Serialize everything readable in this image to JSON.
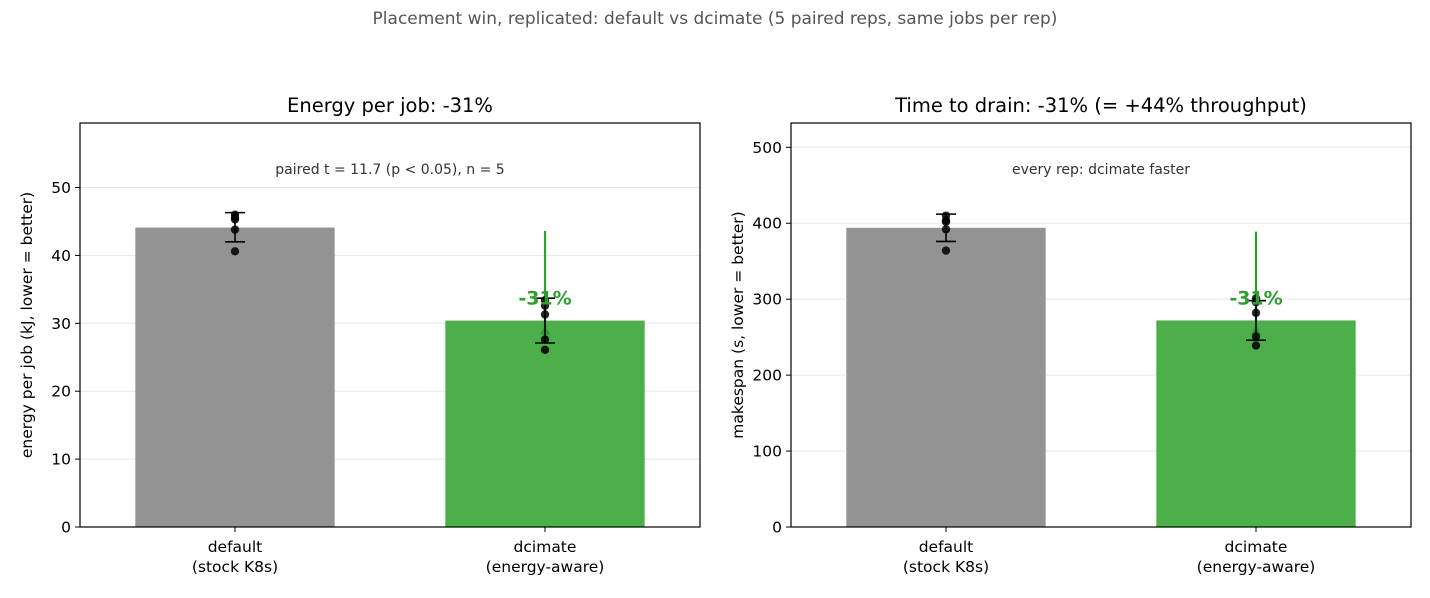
{
  "figure": {
    "suptitle": "Placement win, replicated: default vs dcimate (5 paired reps, same jobs per rep)",
    "colors": {
      "default": "#939393",
      "dcimate": "#4daf4a",
      "accent": "#2ca02c",
      "points": "#000000"
    }
  },
  "chart_data": [
    {
      "type": "bar",
      "title": "Energy per job: -31%",
      "xlabel": "",
      "ylabel": "energy per job (kJ, lower = better)",
      "categories": [
        "default\n(stock K8s)",
        "dcimate\n(energy-aware)"
      ],
      "values": [
        44.1,
        30.4
      ],
      "error_low": [
        42.0,
        27.1
      ],
      "error_high": [
        46.3,
        33.7
      ],
      "replicates": [
        [
          40.6,
          43.8,
          45.3,
          45.6,
          46.0
        ],
        [
          26.1,
          27.6,
          31.3,
          32.6,
          33.4
        ]
      ],
      "ylim": [
        0,
        59.5
      ],
      "yticks": [
        0,
        10,
        20,
        30,
        40,
        50
      ],
      "grid": "y",
      "annotation": "paired t = 11.7  (p < 0.05), n = 5",
      "delta_label": "-31%",
      "delta_arrow": {
        "from": 43.6,
        "to": 30.4
      }
    },
    {
      "type": "bar",
      "title": "Time to drain: -31%  (= +44% throughput)",
      "xlabel": "",
      "ylabel": "makespan (s, lower = better)",
      "categories": [
        "default\n(stock K8s)",
        "dcimate\n(energy-aware)"
      ],
      "values": [
        394,
        272
      ],
      "error_low": [
        376,
        246
      ],
      "error_high": [
        412,
        298
      ],
      "replicates": [
        [
          364,
          392,
          402,
          404,
          410
        ],
        [
          239,
          251,
          282,
          296,
          301
        ]
      ],
      "ylim": [
        0,
        532
      ],
      "yticks": [
        0,
        100,
        200,
        300,
        400,
        500
      ],
      "grid": "y",
      "annotation": "every rep: dcimate faster",
      "delta_label": "-31%",
      "delta_arrow": {
        "from": 389,
        "to": 272
      }
    }
  ]
}
